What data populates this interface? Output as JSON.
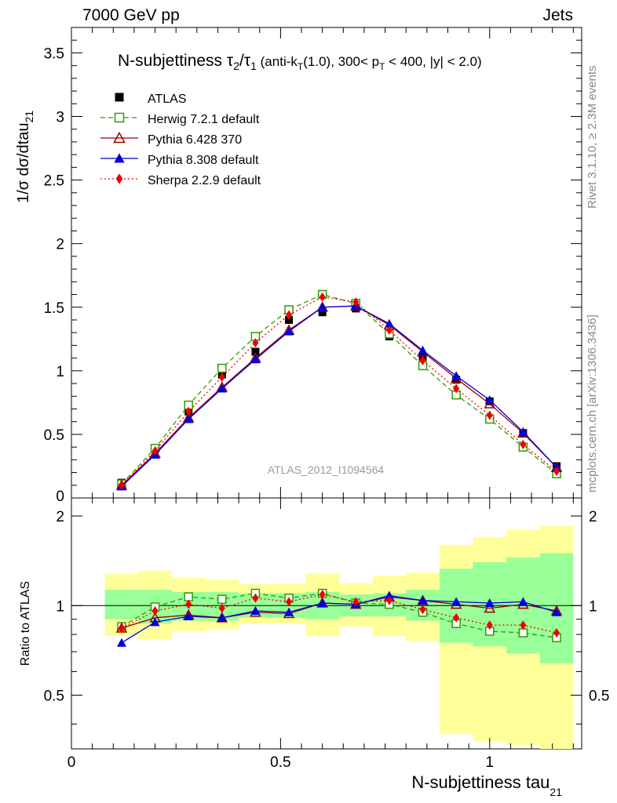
{
  "header": {
    "left": "7000 GeV pp",
    "right": "Jets"
  },
  "side_labels": {
    "rivet": "Rivet 3.1.10, ≥ 2.3M events",
    "mcplots": "mcplots.cern.ch [arXiv:1306.3436]"
  },
  "watermark": "ATLAS_2012_I1094564",
  "title": {
    "main": "N-subjettiness τ",
    "sub2": "2",
    "slash": "/τ",
    "sub1": "1",
    "cut1": " (anti-k",
    "cutT": "T",
    "cut2": "(1.0), 300< p",
    "cutT2": "T",
    "cut3": " < 400, |y| < 2.0)"
  },
  "axes": {
    "ylabel_main": "1/σ dσ/dtau",
    "ylabel_main_sub": "21",
    "ylabel_ratio": "Ratio to ATLAS",
    "xlabel": "N-subjettiness tau",
    "xlabel_sub": "21",
    "x_ticks": [
      "0",
      "0.5",
      "1"
    ],
    "y_ticks_main": [
      "0",
      "0.5",
      "1",
      "1.5",
      "2",
      "2.5",
      "3",
      "3.5"
    ],
    "y_ticks_ratio": [
      "0.5",
      "1",
      "2"
    ]
  },
  "legend": [
    {
      "name": "ATLAS",
      "color": "#000000",
      "marker": "filled-square",
      "line": "none"
    },
    {
      "name": "Herwig 7.2.1 default",
      "color": "#339900",
      "marker": "open-square",
      "line": "dashed"
    },
    {
      "name": "Pythia 6.428 370",
      "color": "#990000",
      "marker": "open-triangle",
      "line": "solid"
    },
    {
      "name": "Pythia 8.308 default",
      "color": "#0000dd",
      "marker": "filled-triangle",
      "line": "solid"
    },
    {
      "name": "Sherpa 2.2.9 default",
      "color": "#ee0000",
      "marker": "filled-diamond",
      "line": "dotted"
    }
  ],
  "chart_data": [
    {
      "type": "line",
      "panel": "main",
      "xlim": [
        0,
        1.22
      ],
      "ylim": [
        0,
        3.7
      ],
      "x": [
        0.12,
        0.2,
        0.28,
        0.36,
        0.44,
        0.52,
        0.6,
        0.68,
        0.76,
        0.84,
        0.92,
        1.0,
        1.08,
        1.16
      ],
      "series": [
        {
          "name": "ATLAS",
          "values": [
            0.12,
            0.39,
            0.68,
            0.97,
            1.15,
            1.4,
            1.46,
            1.49,
            1.27,
            1.11,
            0.93,
            0.76,
            0.51,
            0.25
          ]
        },
        {
          "name": "Herwig 7.2.1 default",
          "values": [
            0.11,
            0.39,
            0.73,
            1.02,
            1.27,
            1.48,
            1.6,
            1.53,
            1.29,
            1.04,
            0.81,
            0.62,
            0.4,
            0.19
          ]
        },
        {
          "name": "Pythia 6.428 370",
          "values": [
            0.1,
            0.35,
            0.63,
            0.87,
            1.1,
            1.32,
            1.5,
            1.51,
            1.36,
            1.15,
            0.94,
            0.74,
            0.51,
            0.24
          ]
        },
        {
          "name": "Pythia 8.308 default",
          "values": [
            0.09,
            0.34,
            0.62,
            0.86,
            1.09,
            1.31,
            1.5,
            1.51,
            1.37,
            1.16,
            0.96,
            0.77,
            0.52,
            0.24
          ]
        },
        {
          "name": "Sherpa 2.2.9 default",
          "values": [
            0.1,
            0.37,
            0.68,
            0.95,
            1.22,
            1.44,
            1.58,
            1.54,
            1.32,
            1.08,
            0.86,
            0.65,
            0.42,
            0.21
          ]
        }
      ]
    },
    {
      "type": "line",
      "panel": "ratio",
      "xlim": [
        0,
        1.22
      ],
      "ylim": [
        0.33,
        2.3
      ],
      "y_scale": "log",
      "x": [
        0.12,
        0.2,
        0.28,
        0.36,
        0.44,
        0.52,
        0.6,
        0.68,
        0.76,
        0.84,
        0.92,
        1.0,
        1.08,
        1.16
      ],
      "bin_edges": [
        0.08,
        0.16,
        0.24,
        0.32,
        0.4,
        0.48,
        0.56,
        0.64,
        0.72,
        0.8,
        0.88,
        0.96,
        1.04,
        1.12,
        1.2
      ],
      "band_inner_lo": [
        0.9,
        0.87,
        0.89,
        0.89,
        0.91,
        0.91,
        0.9,
        0.92,
        0.92,
        0.89,
        0.75,
        0.73,
        0.69,
        0.64
      ],
      "band_inner_hi": [
        1.13,
        1.13,
        1.11,
        1.11,
        1.1,
        1.1,
        1.11,
        1.09,
        1.1,
        1.13,
        1.33,
        1.4,
        1.45,
        1.5
      ],
      "band_outer_lo": [
        0.79,
        0.77,
        0.82,
        0.83,
        0.87,
        0.87,
        0.79,
        0.85,
        0.79,
        0.76,
        0.37,
        0.35,
        0.34,
        0.33
      ],
      "band_outer_hi": [
        1.28,
        1.31,
        1.24,
        1.22,
        1.18,
        1.18,
        1.28,
        1.19,
        1.26,
        1.29,
        1.6,
        1.7,
        1.8,
        1.85
      ],
      "series": [
        {
          "name": "Herwig 7.2.1 default",
          "values": [
            0.85,
            0.99,
            1.07,
            1.05,
            1.1,
            1.06,
            1.1,
            1.02,
            1.01,
            0.95,
            0.87,
            0.82,
            0.81,
            0.78
          ]
        },
        {
          "name": "Pythia 6.428 370",
          "values": [
            0.84,
            0.91,
            0.93,
            0.91,
            0.95,
            0.94,
            1.02,
            1.01,
            1.07,
            1.04,
            1.01,
            0.98,
            1.01,
            0.96
          ]
        },
        {
          "name": "Pythia 8.308 default",
          "values": [
            0.75,
            0.88,
            0.92,
            0.91,
            0.96,
            0.95,
            1.02,
            1.01,
            1.08,
            1.04,
            1.03,
            1.02,
            1.03,
            0.95
          ]
        },
        {
          "name": "Sherpa 2.2.9 default",
          "values": [
            0.84,
            0.96,
            1.01,
            0.98,
            1.06,
            1.03,
            1.09,
            1.03,
            1.04,
            0.97,
            0.91,
            0.86,
            0.86,
            0.81
          ]
        }
      ]
    }
  ]
}
